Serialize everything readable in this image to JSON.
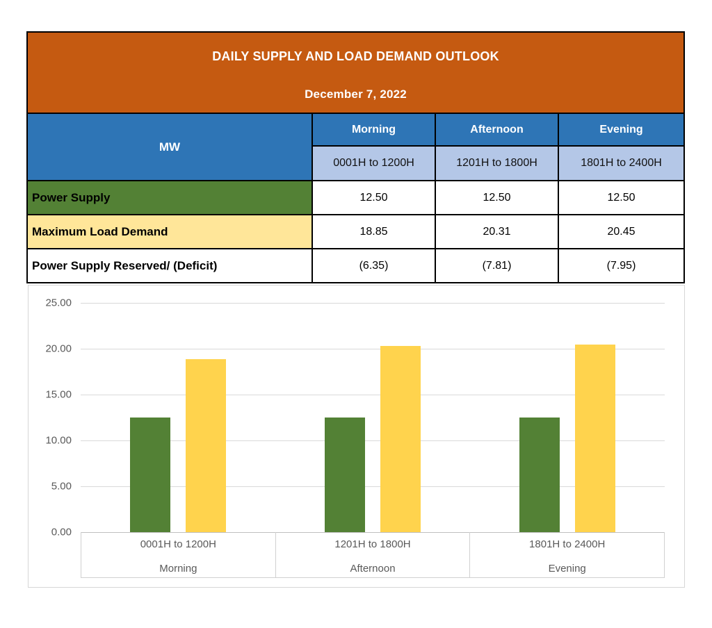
{
  "table": {
    "title": "DAILY SUPPLY AND LOAD DEMAND OUTLOOK",
    "date": "December 7, 2022",
    "unit_label": "MW",
    "periods": [
      {
        "name": "Morning",
        "range": "0001H to 1200H"
      },
      {
        "name": "Afternoon",
        "range": "1201H to 1800H"
      },
      {
        "name": "Evening",
        "range": "1801H to 2400H"
      }
    ],
    "rows": [
      {
        "label": "Power Supply",
        "values": [
          "12.50",
          "12.50",
          "12.50"
        ]
      },
      {
        "label": "Maximum Load Demand",
        "values": [
          "18.85",
          "20.31",
          "20.45"
        ]
      },
      {
        "label": "Power Supply Reserved/ (Deficit)",
        "values": [
          "(6.35)",
          "(7.81)",
          "(7.95)"
        ]
      }
    ]
  },
  "chart_data": {
    "type": "bar",
    "categories": [
      "0001H to 1200H",
      "1201H to 1800H",
      "1801H to 2400H"
    ],
    "category_sublabels": [
      "Morning",
      "Afternoon",
      "Evening"
    ],
    "series": [
      {
        "name": "Power Supply",
        "values": [
          12.5,
          12.5,
          12.5
        ],
        "color": "#538135"
      },
      {
        "name": "Maximum Load Demand",
        "values": [
          18.85,
          20.31,
          20.45
        ],
        "color": "#FFD34D"
      }
    ],
    "title": "",
    "xlabel": "",
    "ylabel": "",
    "ylim": [
      0,
      25
    ],
    "ytick_interval": 5,
    "yticks": [
      "25.00",
      "20.00",
      "15.00",
      "10.00",
      "5.00",
      "0.00"
    ],
    "grid": true,
    "legend": "none"
  },
  "colors": {
    "header-orange": "#C55A11",
    "header-blue": "#2E75B6",
    "subheader-blue": "#B4C7E7",
    "supply-green": "#538135",
    "demand-yellow": "#FFE699",
    "bar-green": "#538135",
    "bar-yellow": "#FFD34D",
    "grid-gray": "#D9D9D9",
    "axis-gray": "#BFBFBF",
    "chart-text": "#595959"
  }
}
